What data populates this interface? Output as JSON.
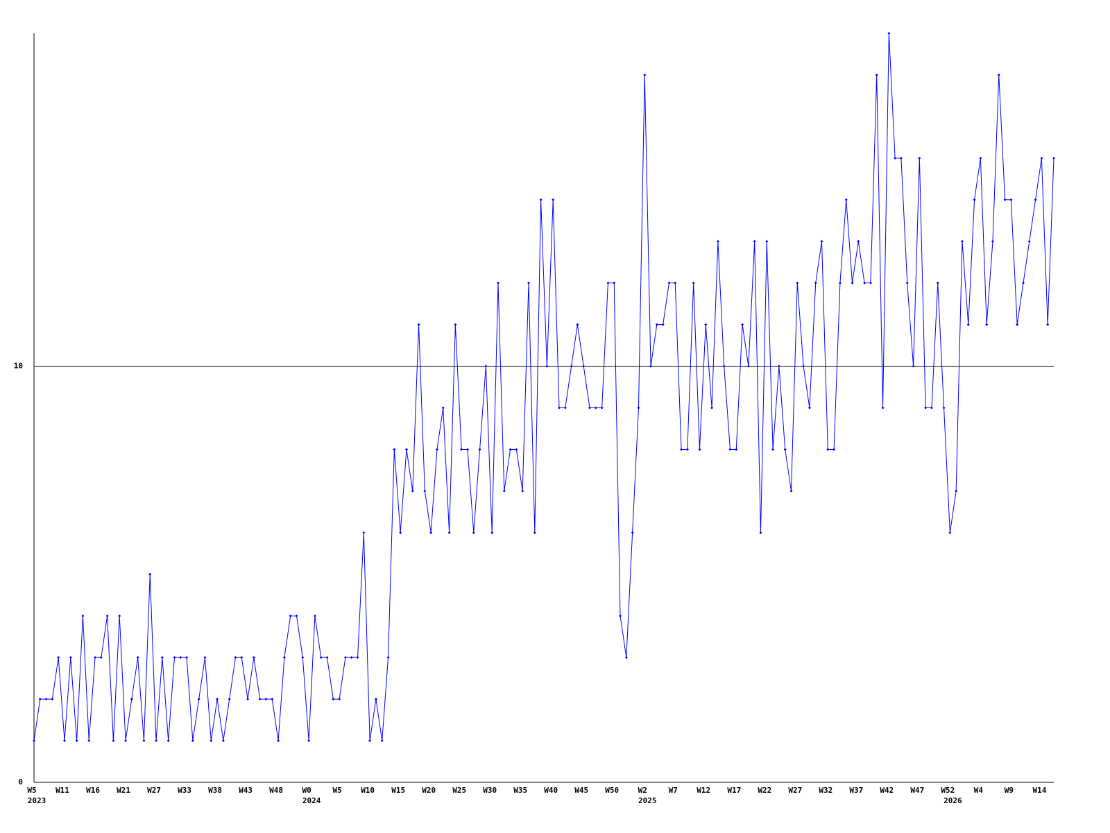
{
  "chart_data": {
    "type": "line",
    "categories": [
      "W5",
      null,
      null,
      null,
      null,
      "W11",
      null,
      null,
      null,
      null,
      "W16",
      null,
      null,
      null,
      null,
      "W21",
      null,
      null,
      null,
      null,
      "W27",
      null,
      null,
      null,
      null,
      "W33",
      null,
      null,
      null,
      null,
      "W38",
      null,
      null,
      null,
      null,
      "W43",
      null,
      null,
      null,
      null,
      "W48",
      null,
      null,
      null,
      null,
      "W0",
      null,
      null,
      null,
      null,
      "W5",
      null,
      null,
      null,
      null,
      "W10",
      null,
      null,
      null,
      null,
      "W15",
      null,
      null,
      null,
      null,
      "W20",
      null,
      null,
      null,
      null,
      "W25",
      null,
      null,
      null,
      null,
      "W30",
      null,
      null,
      null,
      null,
      "W35",
      null,
      null,
      null,
      null,
      "W40",
      null,
      null,
      null,
      null,
      "W45",
      null,
      null,
      null,
      null,
      "W50",
      null,
      null,
      null,
      null,
      "W2",
      null,
      null,
      null,
      null,
      "W7",
      null,
      null,
      null,
      null,
      "W12",
      null,
      null,
      null,
      null,
      "W17",
      null,
      null,
      null,
      null,
      "W22",
      null,
      null,
      null,
      null,
      "W27",
      null,
      null,
      null,
      null,
      "W32",
      null,
      null,
      null,
      null,
      "W37",
      null,
      null,
      null,
      null,
      "W42",
      null,
      null,
      null,
      null,
      "W47",
      null,
      null,
      null,
      null,
      "W52",
      null,
      null,
      null,
      null,
      "W4",
      null,
      null,
      null,
      null,
      "W9",
      null,
      null,
      null,
      null,
      "W14",
      null,
      null
    ],
    "category_years": [
      "2023",
      null,
      null,
      null,
      null,
      null,
      null,
      null,
      null,
      null,
      null,
      null,
      null,
      null,
      null,
      null,
      null,
      null,
      null,
      null,
      null,
      null,
      null,
      null,
      null,
      null,
      null,
      null,
      null,
      null,
      null,
      null,
      null,
      null,
      null,
      null,
      null,
      null,
      null,
      null,
      null,
      null,
      null,
      null,
      null,
      "2024",
      null,
      null,
      null,
      null,
      null,
      null,
      null,
      null,
      null,
      null,
      null,
      null,
      null,
      null,
      null,
      null,
      null,
      null,
      null,
      null,
      null,
      null,
      null,
      null,
      null,
      null,
      null,
      null,
      null,
      null,
      null,
      null,
      null,
      null,
      null,
      null,
      null,
      null,
      null,
      null,
      null,
      null,
      null,
      null,
      null,
      null,
      null,
      null,
      null,
      null,
      null,
      null,
      null,
      null,
      "2025",
      null,
      null,
      null,
      null,
      null,
      null,
      null,
      null,
      null,
      null,
      null,
      null,
      null,
      null,
      null,
      null,
      null,
      null,
      null,
      null,
      null,
      null,
      null,
      null,
      null,
      null,
      null,
      null,
      null,
      null,
      null,
      null,
      null,
      null,
      null,
      null,
      null,
      null,
      null,
      null,
      null,
      null,
      null,
      null,
      null,
      null,
      null,
      null,
      null,
      "2026",
      null,
      null,
      null,
      null,
      null,
      null,
      null,
      null,
      null,
      null,
      null,
      null,
      null,
      null,
      null,
      null,
      null
    ],
    "series": [
      {
        "color": "#0000ff",
        "values": [
          1,
          2,
          2,
          2,
          3,
          1,
          3,
          1,
          4,
          1,
          3,
          3,
          4,
          1,
          4,
          1,
          2,
          3,
          1,
          5,
          1,
          3,
          1,
          3,
          3,
          3,
          1,
          2,
          3,
          1,
          2,
          1,
          2,
          3,
          3,
          2,
          3,
          2,
          2,
          2,
          1,
          3,
          4,
          4,
          3,
          1,
          4,
          3,
          3,
          2,
          2,
          3,
          3,
          3,
          6,
          1,
          2,
          1,
          3,
          8,
          6,
          8,
          7,
          11,
          7,
          6,
          8,
          9,
          6,
          11,
          8,
          8,
          6,
          8,
          10,
          6,
          12,
          7,
          8,
          8,
          7,
          12,
          6,
          14,
          10,
          14,
          9,
          9,
          10,
          11,
          10,
          9,
          9,
          9,
          12,
          12,
          4,
          3,
          6,
          9,
          17,
          10,
          11,
          11,
          12,
          12,
          8,
          8,
          12,
          8,
          11,
          9,
          13,
          10,
          8,
          8,
          11,
          10,
          13,
          6,
          13,
          8,
          10,
          8,
          7,
          12,
          10,
          9,
          12,
          13,
          8,
          8,
          12,
          14,
          12,
          13,
          12,
          12,
          17,
          9,
          18,
          15,
          15,
          12,
          10,
          15,
          9,
          9,
          12,
          9,
          6,
          7,
          13,
          11,
          14,
          15,
          11,
          13,
          17,
          14,
          14,
          11,
          12,
          13,
          14,
          15,
          11,
          15
        ]
      }
    ],
    "ylim": [
      0,
      18
    ],
    "yticks": [
      0,
      10
    ],
    "grid": true
  }
}
